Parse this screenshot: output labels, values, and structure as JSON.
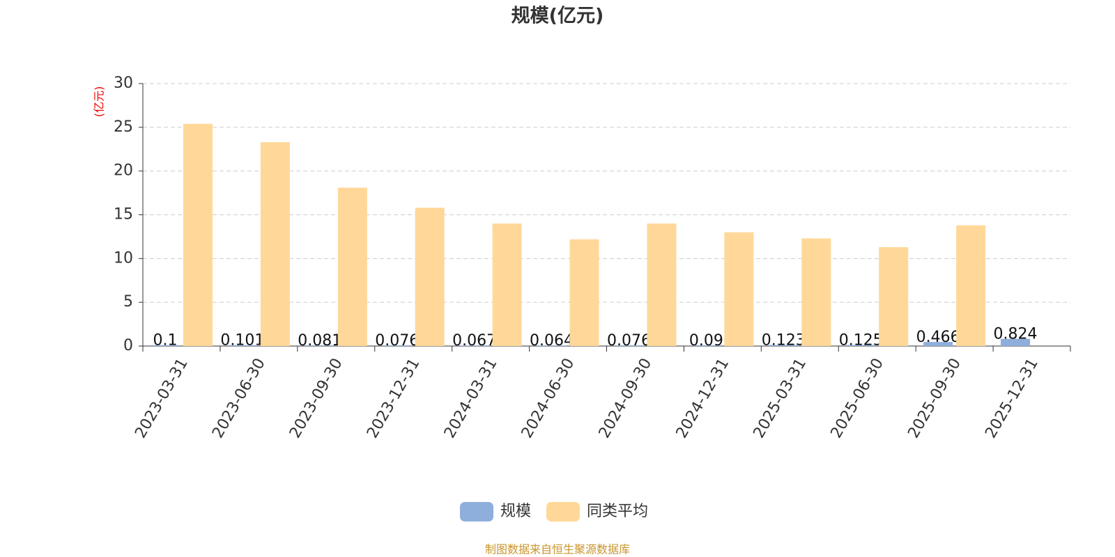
{
  "chart_data": {
    "type": "bar",
    "title": "规模(亿元)",
    "y_label": "(亿元)",
    "categories": [
      "2023-03-31",
      "2023-06-30",
      "2023-09-30",
      "2023-12-31",
      "2024-03-31",
      "2024-06-30",
      "2024-09-30",
      "2024-12-31",
      "2025-03-31",
      "2025-06-30",
      "2025-09-30",
      "2025-12-31"
    ],
    "series": [
      {
        "name": "规模",
        "color": "#8eaedc",
        "show_labels": true,
        "values": [
          0.1,
          0.101,
          0.081,
          0.076,
          0.067,
          0.064,
          0.076,
          0.09,
          0.123,
          0.125,
          0.466,
          0.824
        ]
      },
      {
        "name": "同类平均",
        "color": "#ffd899",
        "show_labels": false,
        "values": [
          25.4,
          23.3,
          18.1,
          15.8,
          14.0,
          12.2,
          14.0,
          13.0,
          12.3,
          11.3,
          13.8,
          null
        ]
      }
    ],
    "ylim": [
      0,
      30
    ],
    "yticks": [
      0,
      5,
      10,
      15,
      20,
      25,
      30
    ],
    "grid": true,
    "legend": "bottom",
    "source": "制图数据来自恒生聚源数据库"
  }
}
